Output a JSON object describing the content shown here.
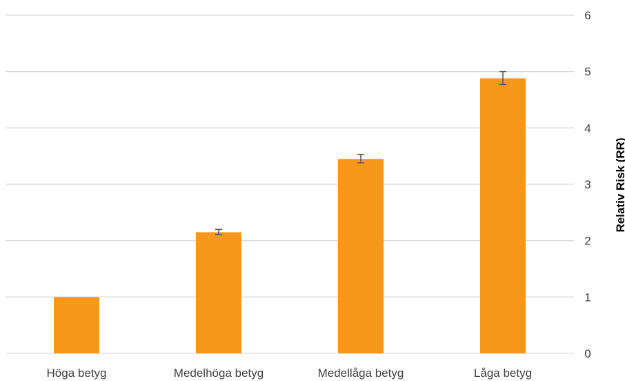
{
  "chart_data": {
    "type": "bar",
    "categories": [
      "Höga betyg",
      "Medelhöga betyg",
      "Medellåga betyg",
      "Låga betyg"
    ],
    "values": [
      1.0,
      2.15,
      3.45,
      4.88
    ],
    "error_bars": [
      null,
      {
        "low": 2.11,
        "high": 2.2
      },
      {
        "low": 3.38,
        "high": 3.53
      },
      {
        "low": 4.77,
        "high": 5.0
      }
    ],
    "ylabel": "Relativ Risk (RR)",
    "xlabel": "",
    "ylim": [
      0,
      6
    ],
    "yticks": [
      "0",
      "1",
      "2",
      "3",
      "4",
      "5",
      "6"
    ],
    "y_axis_side": "right",
    "grid": true,
    "legend": false,
    "colors": {
      "bar": "#F7981D",
      "grid": "#D9D9D9",
      "error_bar": "#595959",
      "text": "#3F3F3F"
    }
  }
}
